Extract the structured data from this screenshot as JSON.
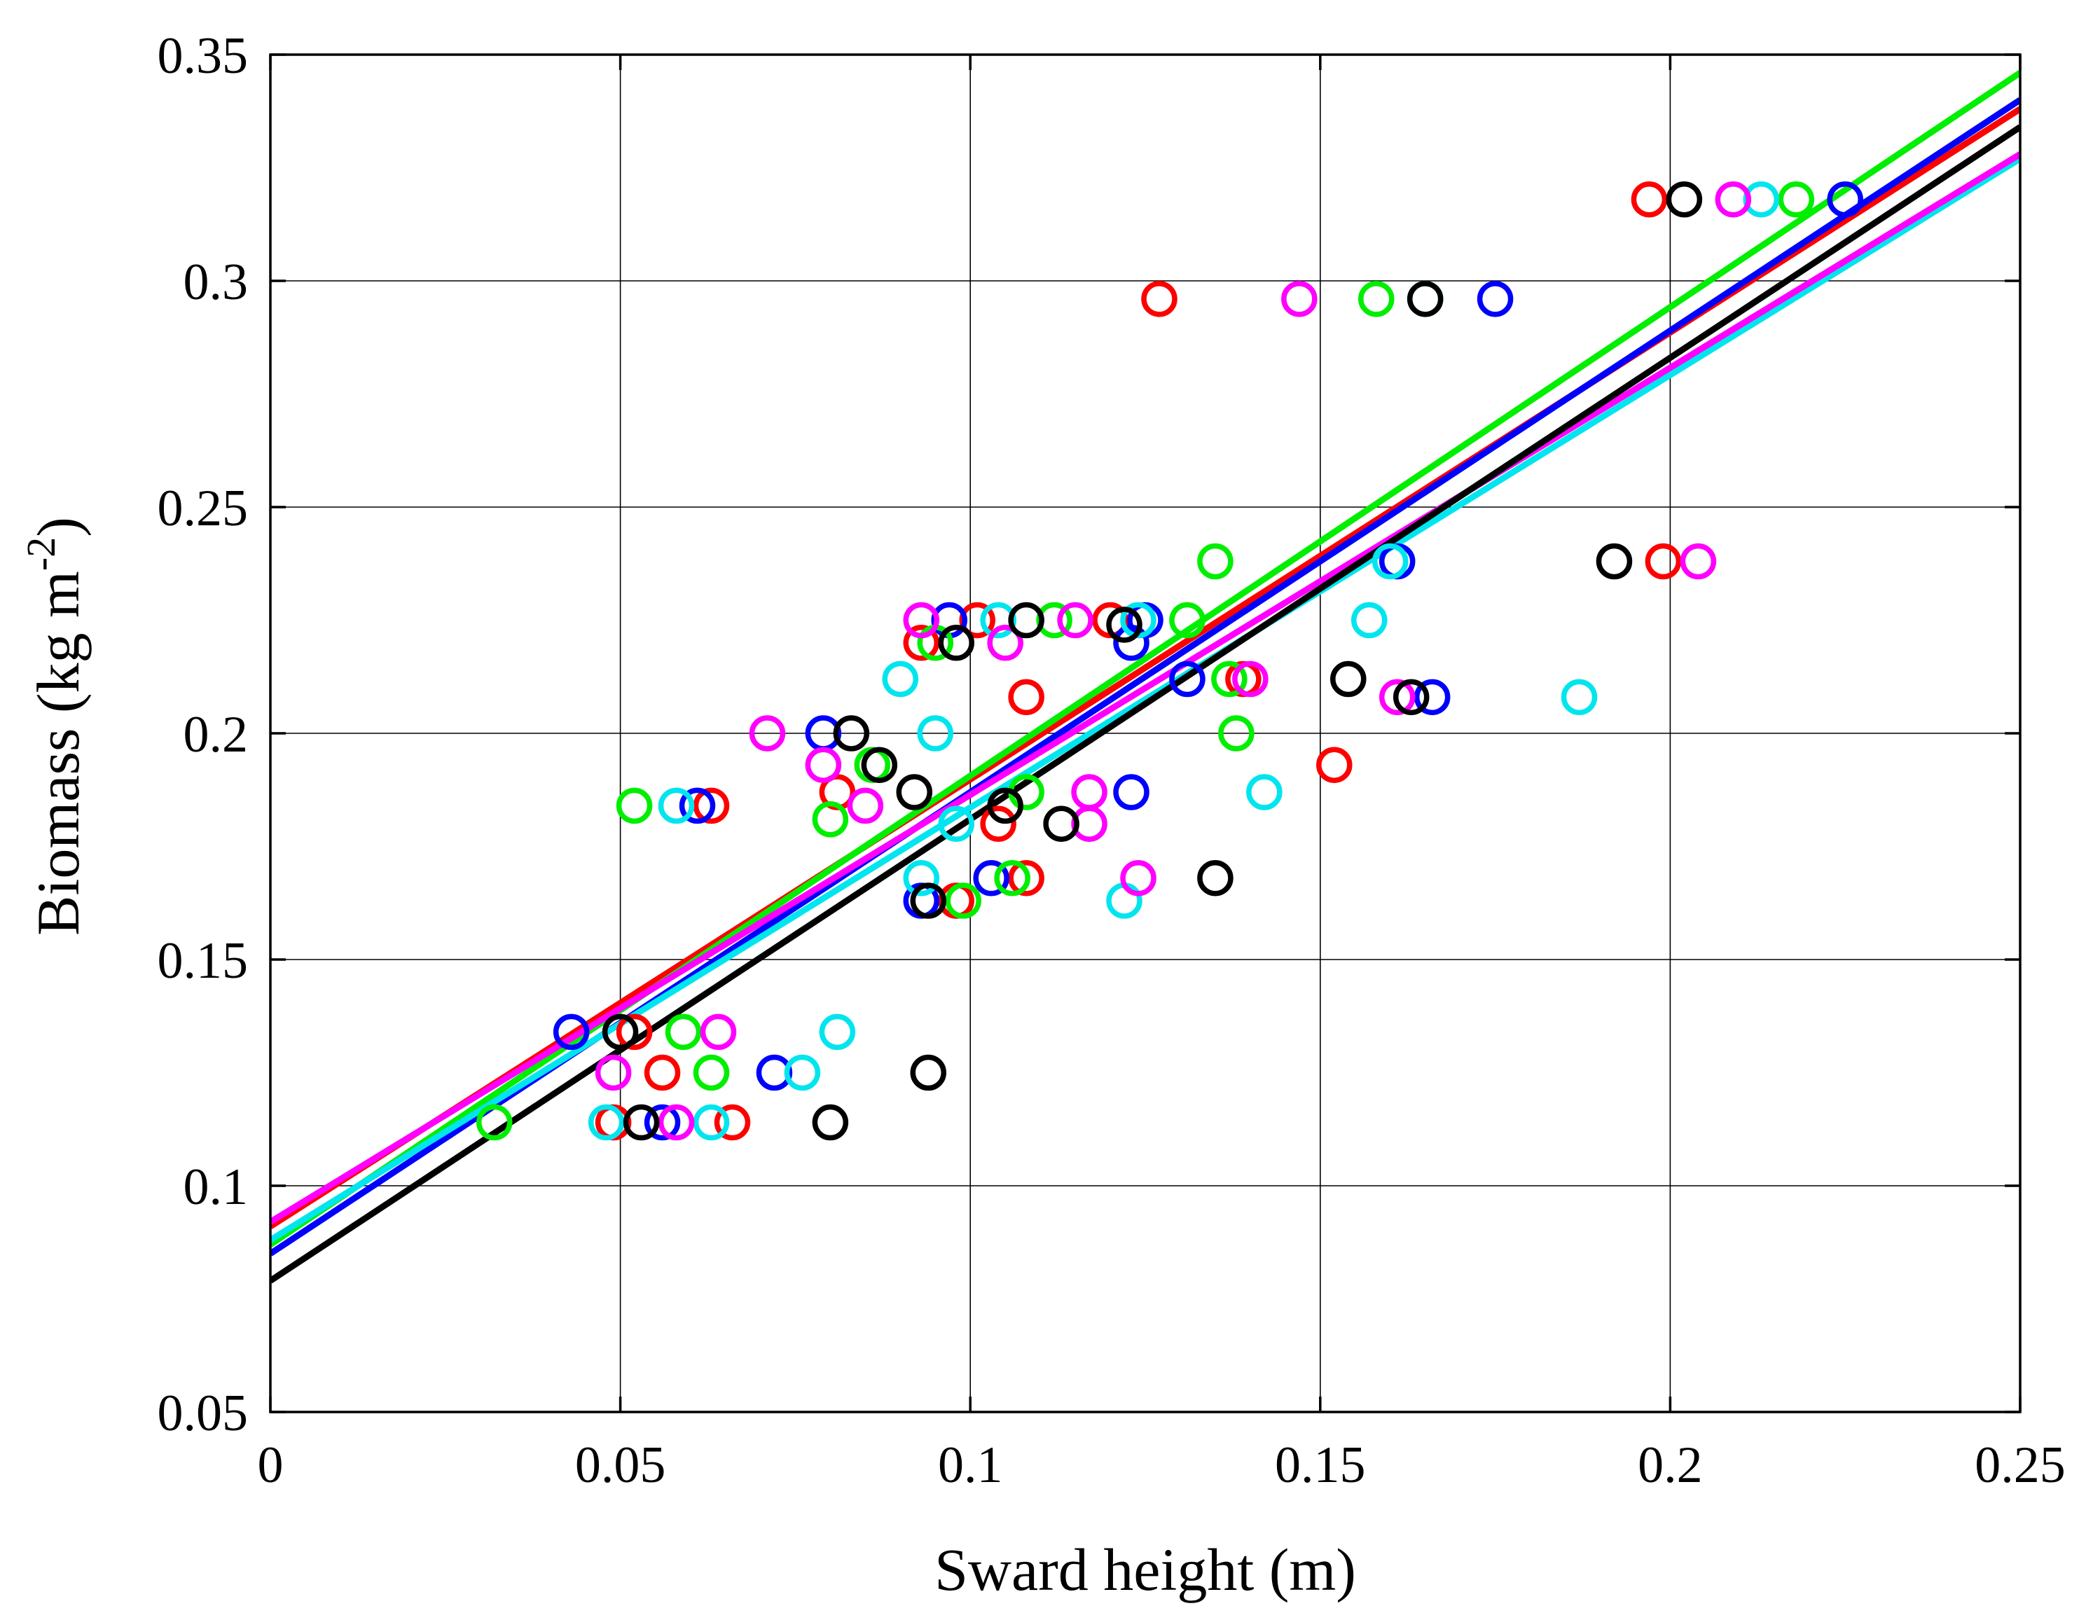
{
  "chart_data": {
    "type": "scatter",
    "title": "",
    "xlabel": "Sward height (m)",
    "ylabel": "Biomass (kg m",
    "ylabel_unit_exponent": "-2",
    "ylabel_suffix": ")",
    "xlim": [
      0,
      0.25
    ],
    "ylim": [
      0.05,
      0.35
    ],
    "x_ticks": [
      "0",
      "0.05",
      "0.1",
      "0.15",
      "0.2",
      "0.25"
    ],
    "y_ticks": [
      "0.05",
      "0.1",
      "0.15",
      "0.2",
      "0.25",
      "0.3",
      "0.35"
    ],
    "x_tick_values": [
      0,
      0.05,
      0.1,
      0.15,
      0.2,
      0.25
    ],
    "y_tick_values": [
      0.05,
      0.1,
      0.15,
      0.2,
      0.25,
      0.3,
      0.35
    ],
    "grid": true,
    "series": [
      {
        "name": "red",
        "color": "#ff0000",
        "fit": {
          "intercept": 0.091,
          "slope": 0.988
        },
        "points": [
          [
            0.052,
            0.134
          ],
          [
            0.056,
            0.125
          ],
          [
            0.049,
            0.114
          ],
          [
            0.066,
            0.114
          ],
          [
            0.063,
            0.184
          ],
          [
            0.081,
            0.187
          ],
          [
            0.093,
            0.22
          ],
          [
            0.101,
            0.225
          ],
          [
            0.12,
            0.225
          ],
          [
            0.108,
            0.208
          ],
          [
            0.104,
            0.18
          ],
          [
            0.108,
            0.168
          ],
          [
            0.098,
            0.163
          ],
          [
            0.127,
            0.296
          ],
          [
            0.139,
            0.212
          ],
          [
            0.152,
            0.193
          ],
          [
            0.197,
            0.318
          ],
          [
            0.199,
            0.238
          ]
        ]
      },
      {
        "name": "blue",
        "color": "#0000ff",
        "fit": {
          "intercept": 0.085,
          "slope": 1.02
        },
        "points": [
          [
            0.043,
            0.134
          ],
          [
            0.056,
            0.114
          ],
          [
            0.061,
            0.184
          ],
          [
            0.072,
            0.125
          ],
          [
            0.079,
            0.2
          ],
          [
            0.093,
            0.163
          ],
          [
            0.097,
            0.225
          ],
          [
            0.103,
            0.168
          ],
          [
            0.123,
            0.22
          ],
          [
            0.125,
            0.225
          ],
          [
            0.123,
            0.187
          ],
          [
            0.131,
            0.212
          ],
          [
            0.161,
            0.238
          ],
          [
            0.166,
            0.208
          ],
          [
            0.175,
            0.296
          ],
          [
            0.225,
            0.318
          ]
        ]
      },
      {
        "name": "green",
        "color": "#00ee00",
        "fit": {
          "intercept": 0.087,
          "slope": 1.036
        },
        "points": [
          [
            0.032,
            0.114
          ],
          [
            0.052,
            0.184
          ],
          [
            0.059,
            0.134
          ],
          [
            0.063,
            0.125
          ],
          [
            0.08,
            0.181
          ],
          [
            0.086,
            0.193
          ],
          [
            0.095,
            0.22
          ],
          [
            0.099,
            0.163
          ],
          [
            0.106,
            0.168
          ],
          [
            0.108,
            0.187
          ],
          [
            0.112,
            0.225
          ],
          [
            0.131,
            0.225
          ],
          [
            0.135,
            0.238
          ],
          [
            0.137,
            0.212
          ],
          [
            0.138,
            0.2
          ],
          [
            0.158,
            0.296
          ],
          [
            0.218,
            0.318
          ]
        ]
      },
      {
        "name": "cyan",
        "color": "#00e5ee",
        "fit": {
          "intercept": 0.088,
          "slope": 0.956
        },
        "points": [
          [
            0.048,
            0.114
          ],
          [
            0.058,
            0.184
          ],
          [
            0.063,
            0.114
          ],
          [
            0.076,
            0.125
          ],
          [
            0.081,
            0.134
          ],
          [
            0.09,
            0.212
          ],
          [
            0.093,
            0.168
          ],
          [
            0.095,
            0.2
          ],
          [
            0.098,
            0.18
          ],
          [
            0.104,
            0.225
          ],
          [
            0.122,
            0.163
          ],
          [
            0.124,
            0.225
          ],
          [
            0.142,
            0.187
          ],
          [
            0.157,
            0.225
          ],
          [
            0.16,
            0.238
          ],
          [
            0.165,
            0.296
          ],
          [
            0.187,
            0.208
          ],
          [
            0.213,
            0.318
          ]
        ]
      },
      {
        "name": "magenta",
        "color": "#ff00ff",
        "fit": {
          "intercept": 0.092,
          "slope": 0.944
        },
        "points": [
          [
            0.049,
            0.125
          ],
          [
            0.058,
            0.114
          ],
          [
            0.064,
            0.134
          ],
          [
            0.071,
            0.2
          ],
          [
            0.079,
            0.193
          ],
          [
            0.085,
            0.184
          ],
          [
            0.093,
            0.225
          ],
          [
            0.105,
            0.22
          ],
          [
            0.115,
            0.225
          ],
          [
            0.117,
            0.18
          ],
          [
            0.117,
            0.187
          ],
          [
            0.124,
            0.168
          ],
          [
            0.14,
            0.212
          ],
          [
            0.147,
            0.296
          ],
          [
            0.161,
            0.208
          ],
          [
            0.204,
            0.238
          ],
          [
            0.209,
            0.318
          ]
        ]
      },
      {
        "name": "black",
        "color": "#000000",
        "fit": {
          "intercept": 0.079,
          "slope": 1.02
        },
        "points": [
          [
            0.05,
            0.134
          ],
          [
            0.053,
            0.114
          ],
          [
            0.08,
            0.114
          ],
          [
            0.083,
            0.2
          ],
          [
            0.087,
            0.193
          ],
          [
            0.092,
            0.187
          ],
          [
            0.094,
            0.163
          ],
          [
            0.094,
            0.125
          ],
          [
            0.098,
            0.22
          ],
          [
            0.105,
            0.184
          ],
          [
            0.108,
            0.225
          ],
          [
            0.113,
            0.18
          ],
          [
            0.122,
            0.224
          ],
          [
            0.135,
            0.168
          ],
          [
            0.154,
            0.212
          ],
          [
            0.163,
            0.208
          ],
          [
            0.165,
            0.296
          ],
          [
            0.192,
            0.238
          ],
          [
            0.202,
            0.318
          ]
        ]
      }
    ]
  }
}
